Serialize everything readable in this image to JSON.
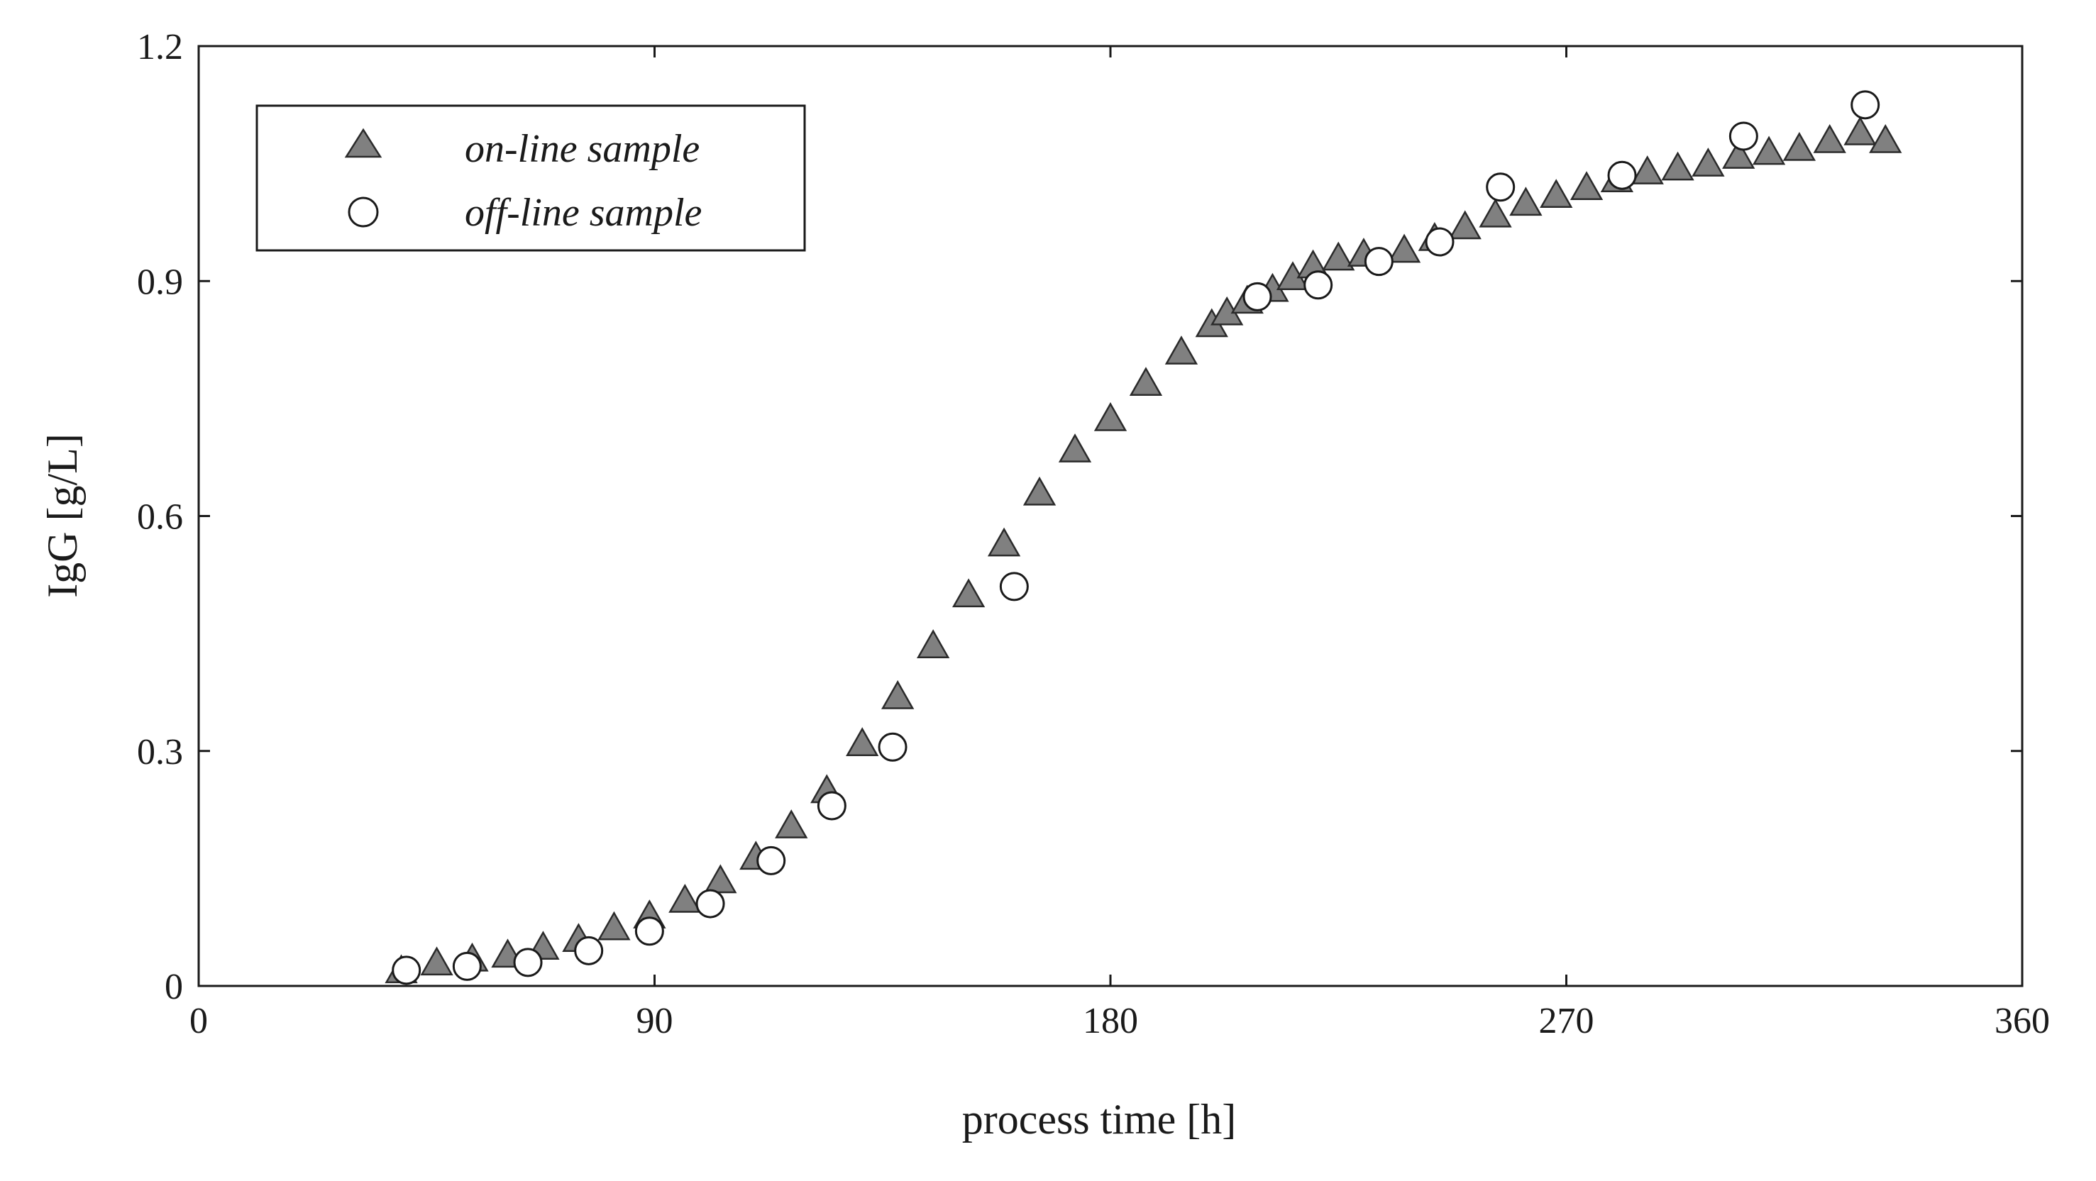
{
  "chart_data": {
    "type": "scatter",
    "title": "",
    "xlabel": "process time [h]",
    "ylabel": "IgG [g/L]",
    "xlim": [
      0,
      360
    ],
    "ylim": [
      0,
      1.2
    ],
    "xticks": [
      0,
      90,
      180,
      270,
      360
    ],
    "yticks": [
      0,
      0.3,
      0.6,
      0.9,
      1.2
    ],
    "xtick_labels": [
      "0",
      "90",
      "180",
      "270",
      "360"
    ],
    "ytick_labels": [
      "0",
      "0.3",
      "0.6",
      "0.9",
      "1.2"
    ],
    "grid": false,
    "legend_position": "top-left",
    "series": [
      {
        "name": "on-line sample",
        "marker": "triangle",
        "color": "#808080",
        "x": [
          40,
          47,
          54,
          61,
          68,
          75,
          82,
          89,
          96,
          103,
          110,
          117,
          124,
          131,
          138,
          145,
          152,
          159,
          166,
          173,
          180,
          187,
          194,
          200,
          203,
          207,
          212,
          216,
          220,
          225,
          230,
          238,
          244,
          250,
          256,
          262,
          268,
          274,
          280,
          286,
          292,
          298,
          304,
          310,
          316,
          322,
          328,
          333
        ],
        "y": [
          0.02,
          0.03,
          0.035,
          0.04,
          0.05,
          0.06,
          0.075,
          0.09,
          0.11,
          0.135,
          0.165,
          0.205,
          0.25,
          0.31,
          0.37,
          0.435,
          0.5,
          0.565,
          0.63,
          0.685,
          0.725,
          0.77,
          0.81,
          0.845,
          0.86,
          0.875,
          0.89,
          0.905,
          0.92,
          0.93,
          0.935,
          0.94,
          0.955,
          0.97,
          0.985,
          1.0,
          1.01,
          1.02,
          1.03,
          1.04,
          1.045,
          1.05,
          1.06,
          1.065,
          1.07,
          1.08,
          1.09,
          1.08
        ]
      },
      {
        "name": "off-line sample",
        "marker": "circle",
        "color": "#ffffff",
        "x": [
          41,
          53,
          65,
          77,
          89,
          101,
          113,
          125,
          137,
          161,
          209,
          221,
          233,
          245,
          257,
          281,
          305,
          329
        ],
        "y": [
          0.02,
          0.025,
          0.03,
          0.045,
          0.07,
          0.105,
          0.16,
          0.23,
          0.305,
          0.51,
          0.88,
          0.895,
          0.925,
          0.95,
          1.02,
          1.035,
          1.085,
          1.125
        ]
      }
    ]
  }
}
